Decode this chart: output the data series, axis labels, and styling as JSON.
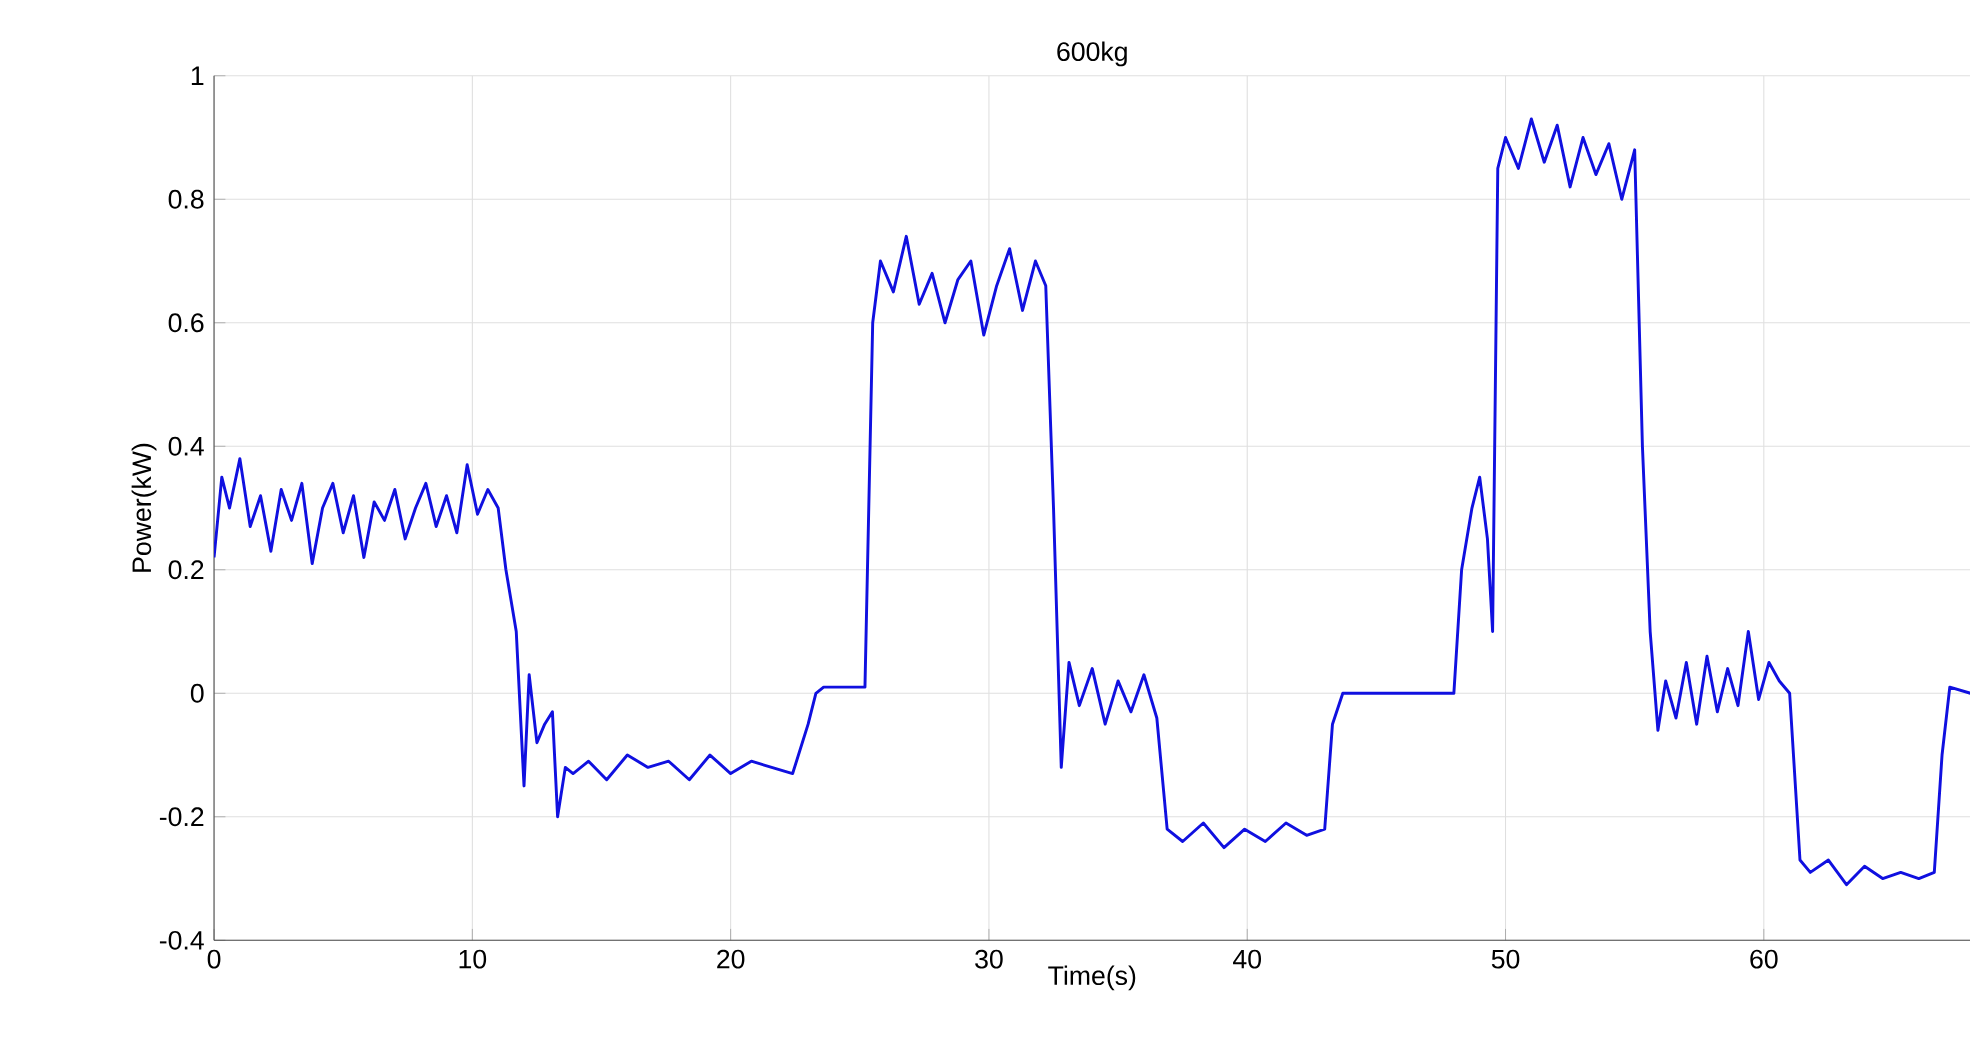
{
  "chart_data": {
    "type": "line",
    "title": "600kg",
    "xlabel": "Time(s)",
    "ylabel": "Power(kW)",
    "xlim": [
      0,
      68
    ],
    "ylim": [
      -0.4,
      1
    ],
    "xticks": [
      0,
      10,
      20,
      30,
      40,
      50,
      60
    ],
    "yticks": [
      -0.4,
      -0.2,
      0,
      0.2,
      0.4,
      0.6,
      0.8,
      1
    ],
    "grid": true,
    "marker": "none",
    "line_style": "solid",
    "series": [
      {
        "color": "#1010e0",
        "x": [
          0,
          0.3,
          0.6,
          1,
          1.4,
          1.8,
          2.2,
          2.6,
          3,
          3.4,
          3.8,
          4.2,
          4.6,
          5,
          5.4,
          5.8,
          6.2,
          6.6,
          7,
          7.4,
          7.8,
          8.2,
          8.6,
          9,
          9.4,
          9.8,
          10.2,
          10.6,
          11,
          11.3,
          11.7,
          12,
          12.2,
          12.5,
          12.8,
          13.1,
          13.3,
          13.6,
          13.9,
          14.5,
          15.2,
          16,
          16.8,
          17.6,
          18.4,
          19.2,
          20,
          20.8,
          21.6,
          22.4,
          23,
          23.3,
          23.6,
          24.5,
          25.2,
          25.5,
          25.8,
          26.3,
          26.8,
          27.3,
          27.8,
          28.3,
          28.8,
          29.3,
          29.8,
          30.3,
          30.8,
          31.3,
          31.8,
          32.2,
          32.5,
          32.8,
          33.1,
          33.5,
          34,
          34.5,
          35,
          35.5,
          36,
          36.5,
          36.9,
          37.5,
          38.3,
          39.1,
          39.9,
          40.7,
          41.5,
          42.3,
          43,
          43.3,
          43.7,
          45,
          46.5,
          48,
          48.3,
          48.7,
          49,
          49.3,
          49.5,
          49.7,
          50,
          50.5,
          51,
          51.5,
          52,
          52.5,
          53,
          53.5,
          54,
          54.5,
          55,
          55.3,
          55.6,
          55.9,
          56.2,
          56.6,
          57,
          57.4,
          57.8,
          58.2,
          58.6,
          59,
          59.4,
          59.8,
          60.2,
          60.6,
          61,
          61.4,
          61.8,
          62.5,
          63.2,
          63.9,
          64.6,
          65.3,
          66,
          66.6,
          66.9,
          67.2,
          68
        ],
        "values": [
          0.22,
          0.35,
          0.3,
          0.38,
          0.27,
          0.32,
          0.23,
          0.33,
          0.28,
          0.34,
          0.21,
          0.3,
          0.34,
          0.26,
          0.32,
          0.22,
          0.31,
          0.28,
          0.33,
          0.25,
          0.3,
          0.34,
          0.27,
          0.32,
          0.26,
          0.37,
          0.29,
          0.33,
          0.3,
          0.2,
          0.1,
          -0.15,
          0.03,
          -0.08,
          -0.05,
          -0.03,
          -0.2,
          -0.12,
          -0.13,
          -0.11,
          -0.14,
          -0.1,
          -0.12,
          -0.11,
          -0.14,
          -0.1,
          -0.13,
          -0.11,
          -0.12,
          -0.13,
          -0.05,
          0,
          0.01,
          0.01,
          0.01,
          0.6,
          0.7,
          0.65,
          0.74,
          0.63,
          0.68,
          0.6,
          0.67,
          0.7,
          0.58,
          0.66,
          0.72,
          0.62,
          0.7,
          0.66,
          0.3,
          -0.12,
          0.05,
          -0.02,
          0.04,
          -0.05,
          0.02,
          -0.03,
          0.03,
          -0.04,
          -0.22,
          -0.24,
          -0.21,
          -0.25,
          -0.22,
          -0.24,
          -0.21,
          -0.23,
          -0.22,
          -0.05,
          0,
          0,
          0,
          0,
          0.2,
          0.3,
          0.35,
          0.25,
          0.1,
          0.85,
          0.9,
          0.85,
          0.93,
          0.86,
          0.92,
          0.82,
          0.9,
          0.84,
          0.89,
          0.8,
          0.88,
          0.4,
          0.1,
          -0.06,
          0.02,
          -0.04,
          0.05,
          -0.05,
          0.06,
          -0.03,
          0.04,
          -0.02,
          0.1,
          -0.01,
          0.05,
          0.02,
          0,
          -0.27,
          -0.29,
          -0.27,
          -0.31,
          -0.28,
          -0.3,
          -0.29,
          -0.3,
          -0.29,
          -0.1,
          0.01,
          0
        ]
      }
    ]
  }
}
